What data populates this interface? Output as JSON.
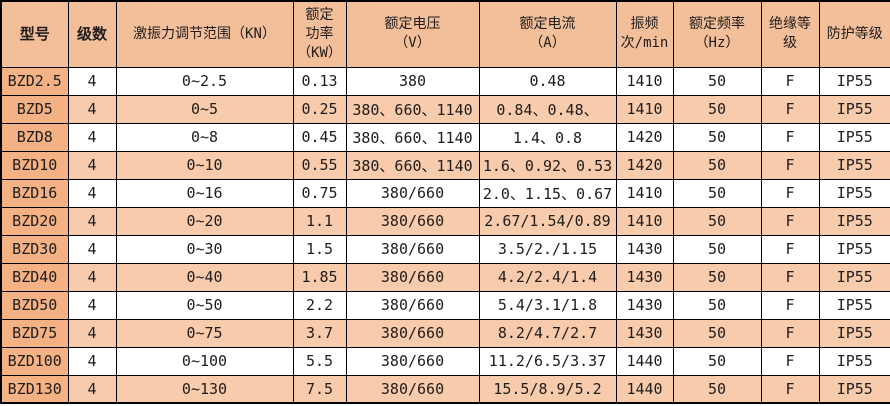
{
  "table": {
    "columns": [
      {
        "key": "model",
        "label": "型号"
      },
      {
        "key": "poles",
        "label": "级数"
      },
      {
        "key": "force-range",
        "label": "激振力调节范围（KN）"
      },
      {
        "key": "rated-power",
        "label": "额定\n功率\n（KW）"
      },
      {
        "key": "rated-voltage",
        "label": "额定电压\n（V）"
      },
      {
        "key": "rated-current",
        "label": "额定电流\n（A）"
      },
      {
        "key": "vibration-frequency",
        "label": "振频\n次/min"
      },
      {
        "key": "rated-frequency",
        "label": "额定频率\n（Hz）"
      },
      {
        "key": "insulation-class",
        "label": "绝缘等级"
      },
      {
        "key": "protection-class",
        "label": "防护等级"
      }
    ],
    "rows": [
      [
        "BZD2.5",
        "4",
        "0~2.5",
        "0.13",
        "380",
        "0.48",
        "1410",
        "50",
        "F",
        "IP55"
      ],
      [
        "BZD5",
        "4",
        "0~5",
        "0.25",
        "380、660、1140",
        "0.84、0.48、",
        "1410",
        "50",
        "F",
        "IP55"
      ],
      [
        "BZD8",
        "4",
        "0~8",
        "0.45",
        "380、660、1140",
        "1.4、0.8",
        "1420",
        "50",
        "F",
        "IP55"
      ],
      [
        "BZD10",
        "4",
        "0~10",
        "0.55",
        "380、660、1140",
        "1.6、0.92、0.53",
        "1420",
        "50",
        "F",
        "IP55"
      ],
      [
        "BZD16",
        "4",
        "0~16",
        "0.75",
        "380/660",
        "2.0、1.15、0.67",
        "1410",
        "50",
        "F",
        "IP55"
      ],
      [
        "BZD20",
        "4",
        "0~20",
        "1.1",
        "380/660",
        "2.67/1.54/0.89",
        "1410",
        "50",
        "F",
        "IP55"
      ],
      [
        "BZD30",
        "4",
        "0~30",
        "1.5",
        "380/660",
        "3.5/2./1.15",
        "1430",
        "50",
        "F",
        "IP55"
      ],
      [
        "BZD40",
        "4",
        "0~40",
        "1.85",
        "380/660",
        "4.2/2.4/1.4",
        "1430",
        "50",
        "F",
        "IP55"
      ],
      [
        "BZD50",
        "4",
        "0~50",
        "2.2",
        "380/660",
        "5.4/3.1/1.8",
        "1430",
        "50",
        "F",
        "IP55"
      ],
      [
        "BZD75",
        "4",
        "0~75",
        "3.7",
        "380/660",
        "8.2/4.7/2.7",
        "1430",
        "50",
        "F",
        "IP55"
      ],
      [
        "BZD100",
        "4",
        "0~100",
        "5.5",
        "380/660",
        "11.2/6.5/3.37",
        "1440",
        "50",
        "F",
        "IP55"
      ],
      [
        "BZD130",
        "4",
        "0~130",
        "7.5",
        "380/660",
        "15.5/8.9/5.2",
        "1440",
        "50",
        "F",
        "IP55"
      ]
    ],
    "colors": {
      "header_bg": "#f3bf9b",
      "model_column_bg": "#f4b183",
      "stripe_row_bg": "#f8cbad",
      "plain_row_bg": "#ffffff",
      "border": "#000000",
      "header_red_text": "#f0301d",
      "body_text": "#201c1a"
    }
  }
}
